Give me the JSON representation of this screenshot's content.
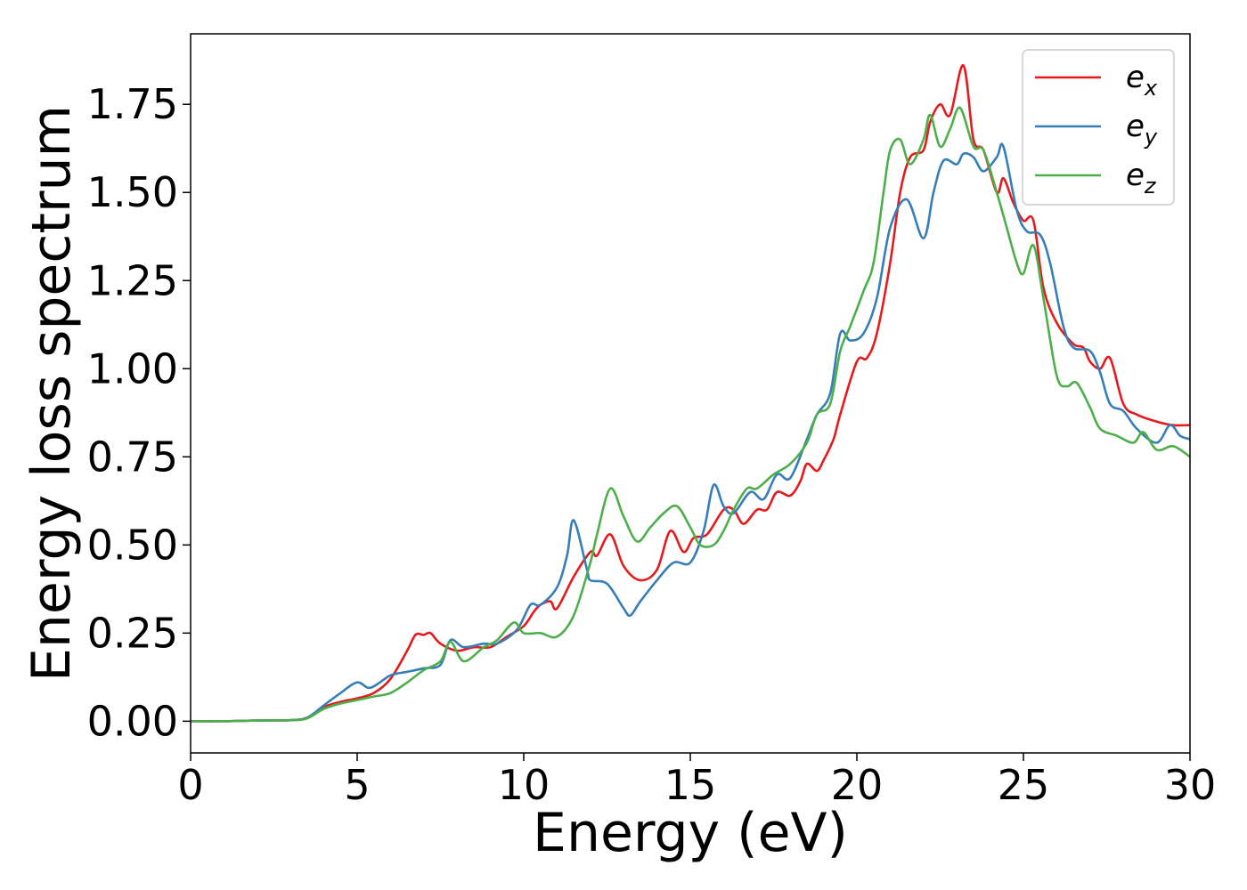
{
  "chart_data": {
    "type": "line",
    "title": "",
    "xlabel": "Energy (eV)",
    "ylabel": "Energy loss spectrum",
    "xlim": [
      0,
      30
    ],
    "ylim": [
      -0.09,
      1.95
    ],
    "xticks": [
      0,
      5,
      10,
      15,
      20,
      25,
      30
    ],
    "xtick_labels": [
      "0",
      "5",
      "10",
      "15",
      "20",
      "25",
      "30"
    ],
    "yticks": [
      0,
      0.25,
      0.5,
      0.75,
      1.0,
      1.25,
      1.5,
      1.75
    ],
    "ytick_labels": [
      "0.00",
      "0.25",
      "0.50",
      "0.75",
      "1.00",
      "1.25",
      "1.50",
      "1.75"
    ],
    "grid": false,
    "legend_position": "top-right",
    "series": [
      {
        "name": "e_x",
        "legend_base": "e",
        "legend_sub": "x",
        "color": "#e41a1c",
        "points": [
          [
            0,
            0
          ],
          [
            1,
            0
          ],
          [
            2,
            0.002
          ],
          [
            3,
            0.003
          ],
          [
            3.5,
            0.01
          ],
          [
            4,
            0.04
          ],
          [
            4.5,
            0.055
          ],
          [
            5,
            0.065
          ],
          [
            5.5,
            0.08
          ],
          [
            6,
            0.12
          ],
          [
            6.5,
            0.2
          ],
          [
            6.75,
            0.245
          ],
          [
            7,
            0.245
          ],
          [
            7.2,
            0.25
          ],
          [
            7.5,
            0.22
          ],
          [
            8,
            0.2
          ],
          [
            8.5,
            0.21
          ],
          [
            9,
            0.21
          ],
          [
            9.5,
            0.24
          ],
          [
            10,
            0.27
          ],
          [
            10.3,
            0.31
          ],
          [
            10.5,
            0.33
          ],
          [
            10.8,
            0.34
          ],
          [
            11,
            0.32
          ],
          [
            11.5,
            0.41
          ],
          [
            12,
            0.48
          ],
          [
            12.2,
            0.47
          ],
          [
            12.6,
            0.53
          ],
          [
            13,
            0.44
          ],
          [
            13.5,
            0.4
          ],
          [
            14,
            0.43
          ],
          [
            14.4,
            0.54
          ],
          [
            14.8,
            0.48
          ],
          [
            15.1,
            0.52
          ],
          [
            15.5,
            0.53
          ],
          [
            16,
            0.6
          ],
          [
            16.3,
            0.6
          ],
          [
            16.6,
            0.56
          ],
          [
            17,
            0.6
          ],
          [
            17.3,
            0.6
          ],
          [
            17.6,
            0.65
          ],
          [
            18,
            0.64
          ],
          [
            18.3,
            0.68
          ],
          [
            18.5,
            0.73
          ],
          [
            18.8,
            0.71
          ],
          [
            19,
            0.74
          ],
          [
            19.3,
            0.8
          ],
          [
            19.5,
            0.87
          ],
          [
            20,
            1.02
          ],
          [
            20.3,
            1.03
          ],
          [
            20.6,
            1.1
          ],
          [
            21,
            1.3
          ],
          [
            21.3,
            1.5
          ],
          [
            21.6,
            1.6
          ],
          [
            22,
            1.62
          ],
          [
            22.2,
            1.7
          ],
          [
            22.5,
            1.75
          ],
          [
            22.8,
            1.72
          ],
          [
            23.2,
            1.86
          ],
          [
            23.5,
            1.65
          ],
          [
            23.8,
            1.62
          ],
          [
            24.2,
            1.5
          ],
          [
            24.4,
            1.54
          ],
          [
            24.7,
            1.47
          ],
          [
            25,
            1.42
          ],
          [
            25.3,
            1.42
          ],
          [
            25.6,
            1.23
          ],
          [
            26,
            1.13
          ],
          [
            26.5,
            1.07
          ],
          [
            26.8,
            1.06
          ],
          [
            27,
            1.02
          ],
          [
            27.3,
            1.0
          ],
          [
            27.6,
            1.03
          ],
          [
            28,
            0.9
          ],
          [
            28.4,
            0.87
          ],
          [
            29,
            0.85
          ],
          [
            29.5,
            0.84
          ],
          [
            30,
            0.84
          ]
        ]
      },
      {
        "name": "e_y",
        "legend_base": "e",
        "legend_sub": "y",
        "color": "#377eb8",
        "points": [
          [
            0,
            0
          ],
          [
            1,
            0
          ],
          [
            2,
            0.002
          ],
          [
            3,
            0.003
          ],
          [
            3.5,
            0.01
          ],
          [
            4,
            0.045
          ],
          [
            4.5,
            0.08
          ],
          [
            5,
            0.11
          ],
          [
            5.4,
            0.095
          ],
          [
            6,
            0.13
          ],
          [
            6.5,
            0.14
          ],
          [
            7,
            0.15
          ],
          [
            7.5,
            0.16
          ],
          [
            7.8,
            0.23
          ],
          [
            8.2,
            0.21
          ],
          [
            8.8,
            0.22
          ],
          [
            9.2,
            0.22
          ],
          [
            9.8,
            0.26
          ],
          [
            10.2,
            0.33
          ],
          [
            10.5,
            0.33
          ],
          [
            11,
            0.38
          ],
          [
            11.3,
            0.47
          ],
          [
            11.5,
            0.57
          ],
          [
            11.9,
            0.43
          ],
          [
            12,
            0.4
          ],
          [
            12.5,
            0.39
          ],
          [
            13,
            0.32
          ],
          [
            13.2,
            0.3
          ],
          [
            13.5,
            0.34
          ],
          [
            14,
            0.4
          ],
          [
            14.5,
            0.45
          ],
          [
            15,
            0.45
          ],
          [
            15.4,
            0.54
          ],
          [
            15.7,
            0.67
          ],
          [
            16,
            0.61
          ],
          [
            16.3,
            0.59
          ],
          [
            16.8,
            0.65
          ],
          [
            17.2,
            0.63
          ],
          [
            17.6,
            0.7
          ],
          [
            18,
            0.69
          ],
          [
            18.5,
            0.8
          ],
          [
            18.8,
            0.87
          ],
          [
            19.2,
            0.93
          ],
          [
            19.5,
            1.1
          ],
          [
            19.8,
            1.08
          ],
          [
            20.2,
            1.1
          ],
          [
            20.6,
            1.2
          ],
          [
            21,
            1.4
          ],
          [
            21.5,
            1.48
          ],
          [
            22,
            1.37
          ],
          [
            22.3,
            1.5
          ],
          [
            22.6,
            1.59
          ],
          [
            23,
            1.58
          ],
          [
            23.2,
            1.61
          ],
          [
            23.5,
            1.6
          ],
          [
            23.8,
            1.56
          ],
          [
            24.2,
            1.6
          ],
          [
            24.4,
            1.63
          ],
          [
            24.8,
            1.45
          ],
          [
            25.1,
            1.39
          ],
          [
            25.5,
            1.38
          ],
          [
            25.8,
            1.3
          ],
          [
            26.2,
            1.12
          ],
          [
            26.5,
            1.06
          ],
          [
            27,
            1.05
          ],
          [
            27.3,
            0.99
          ],
          [
            27.6,
            0.9
          ],
          [
            28,
            0.88
          ],
          [
            28.4,
            0.83
          ],
          [
            29,
            0.79
          ],
          [
            29.4,
            0.84
          ],
          [
            29.7,
            0.81
          ],
          [
            30,
            0.8
          ]
        ]
      },
      {
        "name": "e_z",
        "legend_base": "e",
        "legend_sub": "z",
        "color": "#4daf4a",
        "points": [
          [
            0,
            0
          ],
          [
            1,
            0
          ],
          [
            2,
            0.002
          ],
          [
            3,
            0.003
          ],
          [
            3.5,
            0.008
          ],
          [
            4,
            0.035
          ],
          [
            4.5,
            0.05
          ],
          [
            5,
            0.06
          ],
          [
            5.5,
            0.07
          ],
          [
            6,
            0.08
          ],
          [
            6.5,
            0.11
          ],
          [
            7,
            0.145
          ],
          [
            7.5,
            0.17
          ],
          [
            7.8,
            0.225
          ],
          [
            8.2,
            0.17
          ],
          [
            8.8,
            0.21
          ],
          [
            9.2,
            0.23
          ],
          [
            9.7,
            0.28
          ],
          [
            10,
            0.25
          ],
          [
            10.5,
            0.25
          ],
          [
            11,
            0.24
          ],
          [
            11.5,
            0.3
          ],
          [
            12,
            0.45
          ],
          [
            12.2,
            0.53
          ],
          [
            12.6,
            0.66
          ],
          [
            13,
            0.58
          ],
          [
            13.4,
            0.51
          ],
          [
            13.8,
            0.55
          ],
          [
            14.2,
            0.59
          ],
          [
            14.6,
            0.61
          ],
          [
            15,
            0.55
          ],
          [
            15.3,
            0.5
          ],
          [
            15.7,
            0.5
          ],
          [
            16,
            0.54
          ],
          [
            16.3,
            0.6
          ],
          [
            16.7,
            0.66
          ],
          [
            17,
            0.66
          ],
          [
            17.5,
            0.7
          ],
          [
            18,
            0.73
          ],
          [
            18.5,
            0.79
          ],
          [
            18.8,
            0.87
          ],
          [
            19.2,
            0.9
          ],
          [
            19.5,
            1.05
          ],
          [
            19.8,
            1.12
          ],
          [
            20.2,
            1.22
          ],
          [
            20.5,
            1.3
          ],
          [
            20.8,
            1.5
          ],
          [
            21,
            1.62
          ],
          [
            21.3,
            1.65
          ],
          [
            21.6,
            1.58
          ],
          [
            22,
            1.65
          ],
          [
            22.2,
            1.72
          ],
          [
            22.5,
            1.63
          ],
          [
            22.8,
            1.68
          ],
          [
            23.1,
            1.74
          ],
          [
            23.5,
            1.63
          ],
          [
            23.8,
            1.62
          ],
          [
            24.2,
            1.5
          ],
          [
            24.5,
            1.4
          ],
          [
            24.8,
            1.3
          ],
          [
            25,
            1.27
          ],
          [
            25.3,
            1.35
          ],
          [
            25.6,
            1.2
          ],
          [
            26,
            0.98
          ],
          [
            26.3,
            0.95
          ],
          [
            26.6,
            0.96
          ],
          [
            27,
            0.89
          ],
          [
            27.3,
            0.83
          ],
          [
            27.8,
            0.81
          ],
          [
            28.3,
            0.79
          ],
          [
            28.6,
            0.82
          ],
          [
            29,
            0.77
          ],
          [
            29.5,
            0.78
          ],
          [
            30,
            0.75
          ]
        ]
      }
    ]
  }
}
